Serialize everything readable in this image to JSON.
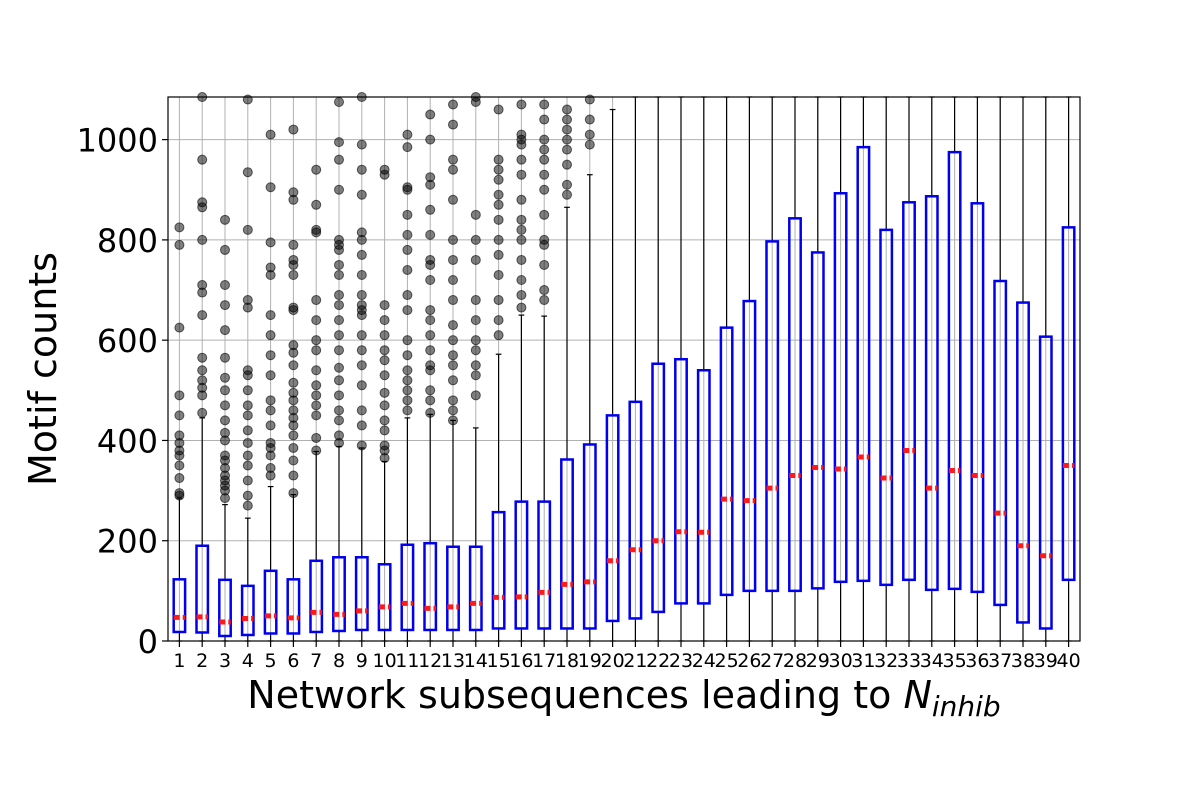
{
  "chart_data": {
    "type": "box",
    "xlabel": "Network subsequences leading to ",
    "xlabel_math": "N",
    "xlabel_sub": "inhib",
    "ylabel": "Motif counts",
    "ylim": [
      0,
      1085
    ],
    "yticks": [
      0,
      200,
      400,
      600,
      800,
      1000
    ],
    "grid": true,
    "categories": [
      "1",
      "2",
      "3",
      "4",
      "5",
      "6",
      "7",
      "8",
      "9",
      "10",
      "11",
      "12",
      "13",
      "14",
      "15",
      "16",
      "17",
      "18",
      "19",
      "20",
      "21",
      "22",
      "23",
      "24",
      "25",
      "26",
      "27",
      "28",
      "29",
      "30",
      "31",
      "32",
      "33",
      "34",
      "35",
      "36",
      "37",
      "38",
      "39",
      "40"
    ],
    "colors": {
      "box": "#0000ee",
      "median": "#ff1a1a",
      "whisker": "#000000",
      "flier": "#000000",
      "grid": "#b0b0b0"
    },
    "q1": [
      18,
      17,
      10,
      12,
      15,
      15,
      18,
      20,
      22,
      22,
      22,
      22,
      22,
      22,
      25,
      25,
      25,
      25,
      25,
      40,
      45,
      58,
      75,
      75,
      92,
      100,
      100,
      100,
      105,
      118,
      120,
      112,
      122,
      102,
      104,
      98,
      72,
      37,
      25,
      122
    ],
    "median": [
      47,
      48,
      38,
      45,
      50,
      46,
      57,
      53,
      60,
      68,
      75,
      65,
      68,
      75,
      87,
      88,
      97,
      113,
      118,
      160,
      182,
      200,
      218,
      217,
      283,
      280,
      305,
      330,
      346,
      343,
      367,
      325,
      380,
      305,
      340,
      330,
      255,
      190,
      170,
      350
    ],
    "q3": [
      123,
      190,
      122,
      110,
      140,
      123,
      160,
      167,
      167,
      153,
      192,
      195,
      188,
      188,
      257,
      278,
      278,
      362,
      392,
      450,
      477,
      553,
      562,
      540,
      625,
      678,
      797,
      843,
      775,
      893,
      985,
      820,
      875,
      887,
      975,
      873,
      718,
      675,
      607,
      825
    ],
    "whisker_low": [
      0,
      0,
      0,
      0,
      0,
      0,
      0,
      0,
      0,
      0,
      0,
      0,
      0,
      0,
      0,
      0,
      0,
      0,
      0,
      0,
      0,
      0,
      0,
      0,
      0,
      0,
      0,
      0,
      0,
      0,
      0,
      0,
      0,
      0,
      0,
      0,
      0,
      0,
      0,
      0
    ],
    "whisker_high": [
      285,
      445,
      272,
      245,
      308,
      292,
      378,
      388,
      385,
      358,
      445,
      452,
      440,
      425,
      572,
      650,
      648,
      865,
      930,
      1060,
      1085,
      1085,
      1085,
      1085,
      1085,
      1085,
      1085,
      1085,
      1085,
      1085,
      1085,
      1085,
      1085,
      1085,
      1085,
      1085,
      1085,
      1085,
      1085,
      1085
    ],
    "fliers": [
      [
        290,
        295,
        325,
        350,
        370,
        380,
        395,
        410,
        450,
        490,
        625,
        790,
        825
      ],
      [
        455,
        490,
        505,
        520,
        540,
        565,
        650,
        695,
        710,
        800,
        865,
        875,
        960,
        1085
      ],
      [
        285,
        300,
        310,
        320,
        330,
        345,
        360,
        370,
        400,
        415,
        440,
        470,
        500,
        525,
        565,
        620,
        670,
        710,
        780,
        840
      ],
      [
        270,
        290,
        320,
        350,
        370,
        395,
        420,
        450,
        470,
        500,
        530,
        540,
        665,
        680,
        820,
        935,
        1080
      ],
      [
        330,
        345,
        370,
        385,
        395,
        430,
        460,
        480,
        530,
        570,
        610,
        650,
        730,
        745,
        795,
        905,
        1010
      ],
      [
        295,
        330,
        360,
        385,
        410,
        430,
        445,
        460,
        480,
        495,
        515,
        550,
        575,
        590,
        660,
        665,
        730,
        750,
        760,
        790,
        880,
        895,
        1020
      ],
      [
        380,
        405,
        450,
        470,
        490,
        510,
        540,
        580,
        600,
        640,
        680,
        815,
        820,
        870,
        940
      ],
      [
        395,
        410,
        440,
        460,
        490,
        520,
        545,
        580,
        610,
        640,
        670,
        690,
        730,
        750,
        780,
        790,
        800,
        900,
        960,
        995,
        1075
      ],
      [
        390,
        430,
        460,
        510,
        550,
        580,
        610,
        650,
        660,
        670,
        690,
        730,
        770,
        800,
        815,
        890,
        940,
        990,
        1085
      ],
      [
        365,
        380,
        390,
        420,
        440,
        470,
        495,
        530,
        560,
        580,
        610,
        640,
        670,
        930,
        940
      ],
      [
        460,
        480,
        500,
        520,
        540,
        570,
        600,
        660,
        690,
        740,
        780,
        810,
        850,
        900,
        905,
        985,
        1010
      ],
      [
        455,
        480,
        500,
        540,
        550,
        580,
        610,
        640,
        660,
        720,
        750,
        760,
        810,
        860,
        910,
        925,
        1000,
        1050
      ],
      [
        440,
        460,
        480,
        520,
        550,
        570,
        600,
        630,
        680,
        720,
        760,
        800,
        880,
        940,
        960,
        1030,
        1070
      ],
      [
        490,
        530,
        550,
        580,
        600,
        640,
        680,
        760,
        800,
        850,
        1075,
        1085
      ],
      [
        610,
        640,
        680,
        730,
        770,
        800,
        840,
        870,
        890,
        920,
        940,
        960,
        1060
      ],
      [
        665,
        690,
        720,
        760,
        800,
        820,
        840,
        880,
        930,
        960,
        990,
        1000,
        1010,
        1070
      ],
      [
        680,
        700,
        750,
        790,
        800,
        850,
        900,
        930,
        960,
        980,
        1000,
        1040,
        1070
      ],
      [
        890,
        910,
        950,
        980,
        1000,
        1020,
        1040,
        1060
      ],
      [
        990,
        1010,
        1040,
        1080
      ]
    ]
  }
}
